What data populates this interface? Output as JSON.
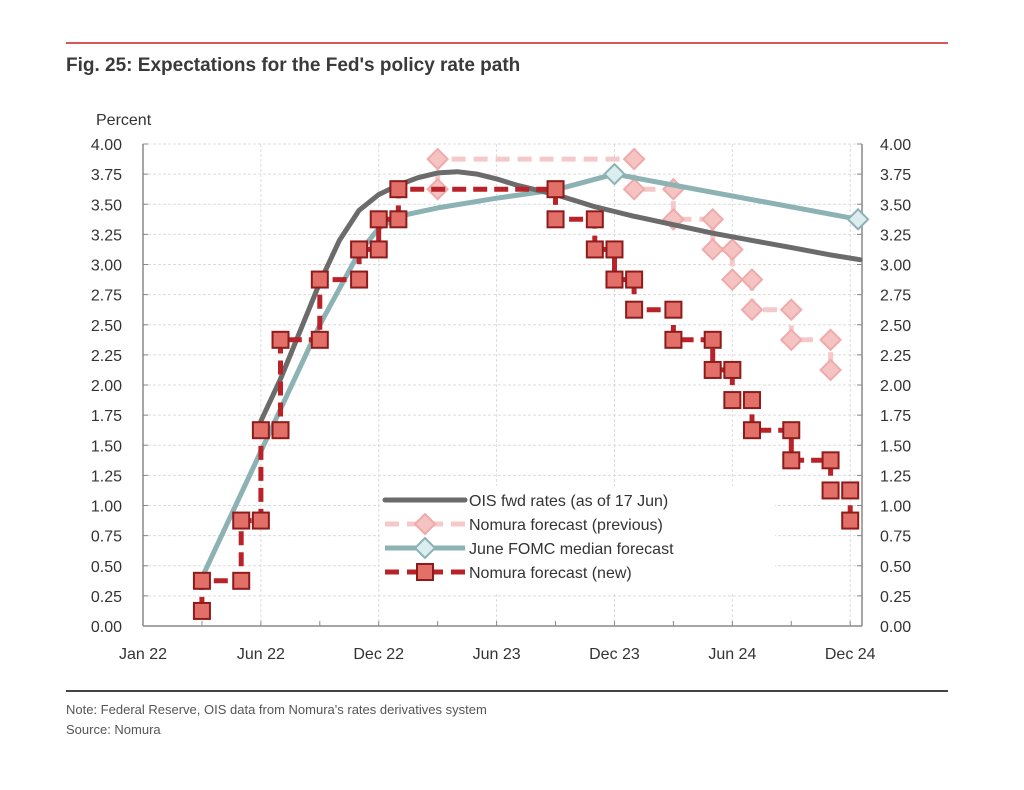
{
  "figure": {
    "title": "Fig. 25: Expectations for the Fed's policy rate path",
    "note": "Note: Federal Reserve, OIS data from Nomura's rates derivatives system",
    "source": "Source: Nomura"
  },
  "chart_data": {
    "type": "line",
    "title": "Fig. 25: Expectations for the Fed's policy rate path",
    "xlabel": "",
    "ylabel": "Percent",
    "ylim": [
      0,
      4
    ],
    "y_ticks": [
      "0.00",
      "0.25",
      "0.50",
      "0.75",
      "1.00",
      "1.25",
      "1.50",
      "1.75",
      "2.00",
      "2.25",
      "2.50",
      "2.75",
      "3.00",
      "3.25",
      "3.50",
      "3.75",
      "4.00"
    ],
    "y_tick_values": [
      0,
      0.25,
      0.5,
      0.75,
      1,
      1.25,
      1.5,
      1.75,
      2,
      2.25,
      2.5,
      2.75,
      3,
      3.25,
      3.5,
      3.75,
      4
    ],
    "right_axis_mirrors_left": true,
    "x_unit": "months since Jan 2022",
    "xlim": [
      -1,
      35.6
    ],
    "x_tick_labels": [
      {
        "label": "Jan 22",
        "x": 0
      },
      {
        "label": "Jun 22",
        "x": 5
      },
      {
        "label": "Dec 22",
        "x": 11
      },
      {
        "label": "Jun 23",
        "x": 17
      },
      {
        "label": "Dec 23",
        "x": 23
      },
      {
        "label": "Jun 24",
        "x": 29
      },
      {
        "label": "Dec 24",
        "x": 35
      }
    ],
    "x_minor_ticks": [
      2,
      5,
      8,
      11,
      14,
      17,
      20,
      23,
      26,
      29,
      32,
      35
    ],
    "grid": true,
    "legend_position": "bottom-center",
    "series": [
      {
        "name": "OIS fwd rates (as of 17 Jun)",
        "style": "solid",
        "color": "#6b6b6b",
        "marker": "none",
        "points": [
          [
            5,
            1.7
          ],
          [
            6,
            2.05
          ],
          [
            7,
            2.45
          ],
          [
            8,
            2.85
          ],
          [
            9,
            3.2
          ],
          [
            10,
            3.45
          ],
          [
            11,
            3.58
          ],
          [
            12,
            3.66
          ],
          [
            13,
            3.72
          ],
          [
            14,
            3.76
          ],
          [
            15,
            3.77
          ],
          [
            16,
            3.75
          ],
          [
            17,
            3.71
          ],
          [
            18,
            3.66
          ],
          [
            19,
            3.62
          ],
          [
            20,
            3.58
          ],
          [
            21,
            3.53
          ],
          [
            22,
            3.48
          ],
          [
            23,
            3.44
          ],
          [
            24,
            3.4
          ],
          [
            26,
            3.33
          ],
          [
            28,
            3.26
          ],
          [
            30,
            3.2
          ],
          [
            32,
            3.14
          ],
          [
            34,
            3.08
          ],
          [
            35.5,
            3.04
          ]
        ]
      },
      {
        "name": "Nomura forecast (previous)",
        "style": "dashed",
        "color": "#f2b9b9",
        "marker": "diamond",
        "points": [
          [
            14,
            3.625
          ],
          [
            14,
            3.875
          ],
          [
            24,
            3.875
          ],
          [
            24,
            3.625
          ],
          [
            26,
            3.625
          ],
          [
            26,
            3.375
          ],
          [
            28,
            3.375
          ],
          [
            28,
            3.125
          ],
          [
            29,
            3.125
          ],
          [
            29,
            2.875
          ],
          [
            30,
            2.875
          ],
          [
            30,
            2.625
          ],
          [
            32,
            2.625
          ],
          [
            32,
            2.375
          ],
          [
            34,
            2.375
          ],
          [
            34,
            2.125
          ]
        ]
      },
      {
        "name": "June FOMC median forecast",
        "style": "solid",
        "color": "#8db2b4",
        "marker": "diamond",
        "marker_points": [
          [
            23,
            3.75
          ],
          [
            35.4,
            3.375
          ]
        ],
        "points": [
          [
            2,
            0.4
          ],
          [
            5,
            1.45
          ],
          [
            8,
            2.5
          ],
          [
            10,
            3.1
          ],
          [
            11,
            3.3
          ],
          [
            12,
            3.4
          ],
          [
            14,
            3.47
          ],
          [
            17,
            3.55
          ],
          [
            20,
            3.62
          ],
          [
            23,
            3.75
          ],
          [
            35.4,
            3.375
          ]
        ]
      },
      {
        "name": "Nomura forecast (new)",
        "style": "dashed",
        "color": "#b8232a",
        "marker": "square",
        "points": [
          [
            2,
            0.125
          ],
          [
            2,
            0.375
          ],
          [
            4,
            0.375
          ],
          [
            4,
            0.875
          ],
          [
            5,
            0.875
          ],
          [
            5,
            1.625
          ],
          [
            6,
            1.625
          ],
          [
            6,
            2.375
          ],
          [
            8,
            2.375
          ],
          [
            8,
            2.875
          ],
          [
            10,
            2.875
          ],
          [
            10,
            3.125
          ],
          [
            11,
            3.125
          ],
          [
            11,
            3.375
          ],
          [
            12,
            3.375
          ],
          [
            12,
            3.625
          ],
          [
            20,
            3.625
          ],
          [
            20,
            3.375
          ],
          [
            22,
            3.375
          ],
          [
            22,
            3.125
          ],
          [
            23,
            3.125
          ],
          [
            23,
            2.875
          ],
          [
            24,
            2.875
          ],
          [
            24,
            2.625
          ],
          [
            26,
            2.625
          ],
          [
            26,
            2.375
          ],
          [
            28,
            2.375
          ],
          [
            28,
            2.125
          ],
          [
            29,
            2.125
          ],
          [
            29,
            1.875
          ],
          [
            30,
            1.875
          ],
          [
            30,
            1.625
          ],
          [
            32,
            1.625
          ],
          [
            32,
            1.375
          ],
          [
            34,
            1.375
          ],
          [
            34,
            1.125
          ],
          [
            35,
            1.125
          ],
          [
            35,
            0.875
          ]
        ]
      }
    ]
  }
}
